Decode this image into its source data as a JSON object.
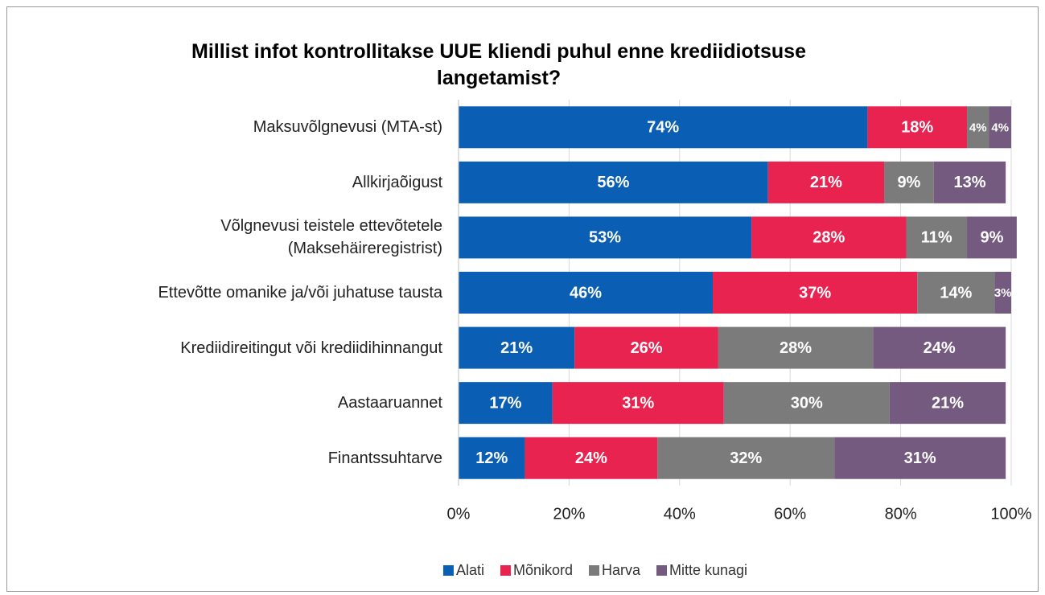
{
  "chart_data": {
    "type": "stacked_barh",
    "title": "Millist infot kontrollitakse UUE kliendi puhul enne krediidiotsuse langetamist?",
    "categories": [
      "Maksuvõlgnevusi (MTA-st)",
      "Allkirjaõigust",
      "Võlgnevusi teistele ettevõtetele (Maksehäireregistrist)",
      "Ettevõtte omanike ja/või juhatuse tausta",
      "Krediidireitingut või krediidihinnangut",
      "Aastaaruannet",
      "Finantssuhtarve"
    ],
    "series": [
      {
        "name": "Alati",
        "color": "#0a5fb4",
        "values": [
          74,
          56,
          53,
          46,
          21,
          17,
          12
        ],
        "value_labels": [
          "74%",
          "56%",
          "53%",
          "46%",
          "21%",
          "17%",
          "12%"
        ]
      },
      {
        "name": "Mõnikord",
        "color": "#e8234f",
        "values": [
          18,
          21,
          28,
          37,
          26,
          31,
          24
        ],
        "value_labels": [
          "18%",
          "21%",
          "28%",
          "37%",
          "26%",
          "31%",
          "24%"
        ]
      },
      {
        "name": "Harva",
        "color": "#7b7b7b",
        "values": [
          4,
          9,
          11,
          14,
          28,
          30,
          32
        ],
        "value_labels": [
          "4%",
          "9%",
          "11%",
          "14%",
          "28%",
          "30%",
          "32%"
        ]
      },
      {
        "name": "Mitte kunagi",
        "color": "#735a7e",
        "values": [
          4,
          13,
          9,
          3,
          24,
          21,
          31
        ],
        "value_labels": [
          "4%",
          "13%",
          "9%",
          "3%",
          "24%",
          "21%",
          "31%"
        ]
      }
    ],
    "xlim": [
      0,
      100
    ],
    "xticks": [
      {
        "value": 0,
        "label": "0%"
      },
      {
        "value": 20,
        "label": "20%"
      },
      {
        "value": 40,
        "label": "40%"
      },
      {
        "value": 60,
        "label": "60%"
      },
      {
        "value": 80,
        "label": "80%"
      },
      {
        "value": 100,
        "label": "100%"
      }
    ],
    "grid": true,
    "legend": "bottom"
  }
}
